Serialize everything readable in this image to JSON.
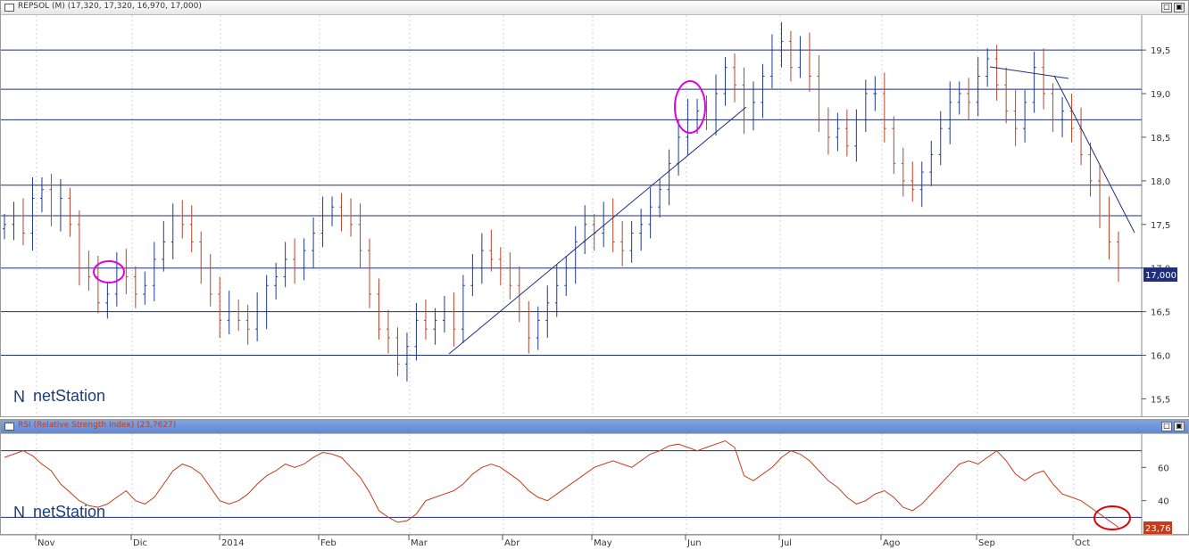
{
  "price_pane": {
    "title": "REPSOL (M) (17,320, 17,320, 16,970, 17,000)",
    "last_price_badge": "17,000",
    "watermark": "netStation",
    "colors": {
      "up": "#1f3b8f",
      "down": "#b5452c",
      "level_line": "#1f2f7a",
      "trendline": "#1f2f7a",
      "ellipse": "#e000e0",
      "badge_bg": "#1f2f7a"
    }
  },
  "rsi_pane": {
    "title": "RSI (Relative Strength Index) (23,7627)",
    "last_value_badge": "23,76",
    "watermark": "netStation",
    "colors": {
      "line": "#c43c1c",
      "badge_bg": "#c43c1c",
      "circle": "#e00000",
      "level_line": "#1f2f7a"
    }
  },
  "window_buttons": {
    "restore": "□",
    "maximize": "▣"
  },
  "date_axis": {
    "labels": [
      "Nov",
      "Dic",
      "2014",
      "Feb",
      "Mar",
      "Abr",
      "May",
      "Jun",
      "Jul",
      "Ago",
      "Sep",
      "Oct"
    ]
  },
  "chart_data": [
    {
      "type": "ohlc",
      "title": "REPSOL (M) (17,320, 17,320, 16,970, 17,000)",
      "y_ticks": [
        "19,5",
        "19,0",
        "18,5",
        "18,0",
        "17,5",
        "17,0",
        "16,5",
        "16,0",
        "15,5"
      ],
      "ylim": [
        15.3,
        19.9
      ],
      "horizontal_levels": [
        19.5,
        19.05,
        18.7,
        17.95,
        17.6,
        17.0,
        16.5,
        16.0
      ],
      "series": [
        {
          "values": [
            17.5,
            17.6,
            17.4,
            17.8,
            17.9,
            17.6,
            17.8,
            17.5,
            17.0,
            16.9,
            16.6,
            16.7,
            17.0,
            16.9,
            16.7,
            16.8,
            17.1,
            17.3,
            17.6,
            17.5,
            17.3,
            17.0,
            16.7,
            16.4,
            16.5,
            16.4,
            16.3,
            16.5,
            16.8,
            16.9,
            17.1,
            17.0,
            17.2,
            17.4,
            17.6,
            17.7,
            17.6,
            17.5,
            17.2,
            16.7,
            16.3,
            16.2,
            15.9,
            16.1,
            16.4,
            16.3,
            16.4,
            16.5,
            16.3,
            16.8,
            17.0,
            17.2,
            17.1,
            17.0,
            16.8,
            16.5,
            16.2,
            16.4,
            16.6,
            16.8,
            17.0,
            17.3,
            17.5,
            17.4,
            17.6,
            17.3,
            17.2,
            17.4,
            17.5,
            17.7,
            17.9,
            18.2,
            18.5,
            18.7,
            18.8,
            18.7,
            19.0,
            19.3,
            19.1,
            18.7,
            18.9,
            19.2,
            19.5,
            19.6,
            19.3,
            19.5,
            19.2,
            18.7,
            18.5,
            18.6,
            18.4,
            18.7,
            19.0,
            19.0,
            18.6,
            18.2,
            18.0,
            17.9,
            18.1,
            18.3,
            18.6,
            18.9,
            19.0,
            18.9,
            19.2,
            19.4,
            19.1,
            18.8,
            18.6,
            18.9,
            19.3,
            19.0,
            18.7,
            18.8,
            18.6,
            18.3,
            18.0,
            17.6,
            17.3,
            17.0
          ],
          "n_bars": 120
        }
      ],
      "annotations": [
        "trendline-rising-mar-jun",
        "trendline-sep-flat",
        "trendline-sep-oct-falling",
        "ellipse-nov",
        "ellipse-jun"
      ]
    },
    {
      "type": "line",
      "title": "RSI (Relative Strength Index) (23,7627)",
      "y_ticks": [
        "60",
        "40"
      ],
      "ylim": [
        20,
        80
      ],
      "horizontal_levels": [
        70,
        30
      ],
      "series": [
        {
          "values": [
            66,
            68,
            70,
            67,
            62,
            58,
            50,
            45,
            40,
            37,
            36,
            38,
            42,
            46,
            40,
            38,
            42,
            50,
            58,
            62,
            60,
            56,
            48,
            40,
            38,
            40,
            44,
            50,
            55,
            58,
            62,
            60,
            62,
            66,
            69,
            68,
            66,
            60,
            54,
            45,
            34,
            30,
            27,
            28,
            32,
            40,
            42,
            44,
            46,
            50,
            56,
            60,
            62,
            60,
            56,
            52,
            46,
            42,
            40,
            44,
            48,
            52,
            56,
            60,
            62,
            64,
            62,
            60,
            64,
            68,
            70,
            73,
            74,
            72,
            70,
            72,
            74,
            76,
            72,
            55,
            52,
            56,
            60,
            66,
            70,
            68,
            64,
            58,
            52,
            48,
            42,
            38,
            40,
            44,
            46,
            42,
            36,
            34,
            38,
            44,
            50,
            56,
            62,
            64,
            62,
            66,
            70,
            64,
            56,
            52,
            56,
            58,
            50,
            44,
            42,
            40,
            36,
            32,
            28,
            24
          ]
        }
      ]
    }
  ]
}
